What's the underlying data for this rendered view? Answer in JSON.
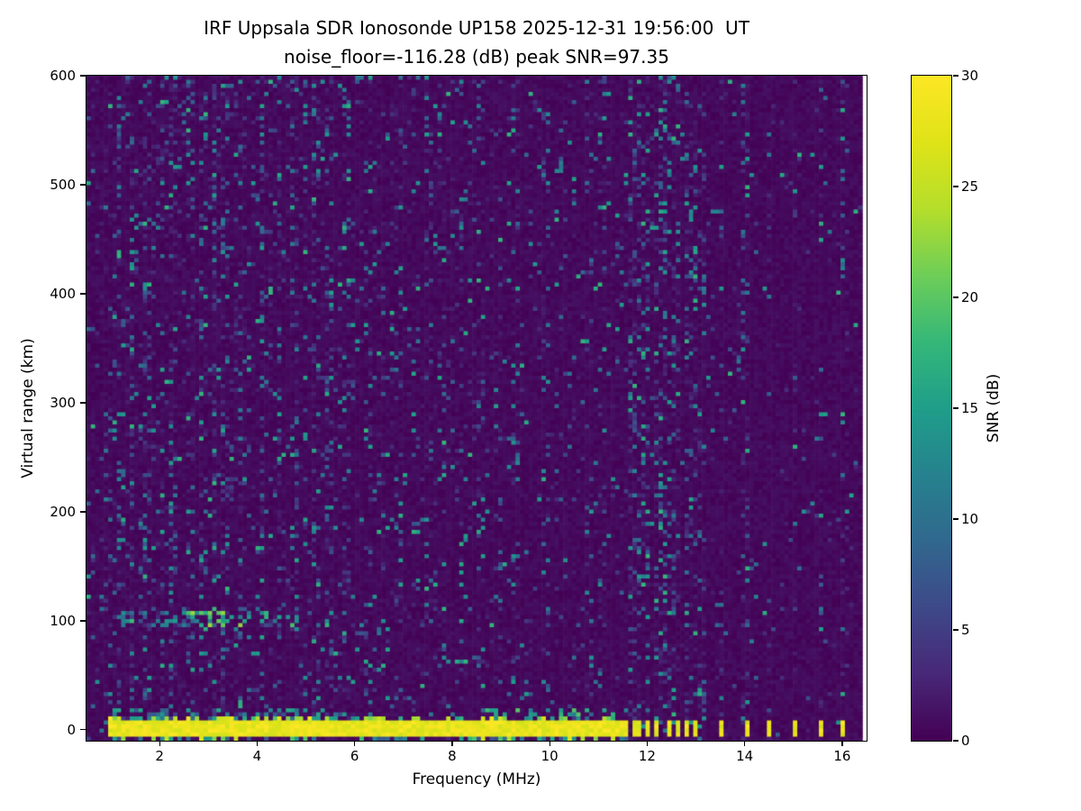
{
  "figure": {
    "title_line1": "IRF Uppsala SDR Ionosonde UP158 2025-12-31 19:56:00  UT",
    "title_line2": "noise_floor=-116.28 (dB) peak SNR=97.35",
    "xlabel": "Frequency (MHz)",
    "ylabel": "Virtual range (km)",
    "colorbar_label": "SNR (dB)"
  },
  "chart_data": {
    "type": "heatmap",
    "title": "IRF Uppsala SDR Ionosonde UP158 2025-12-31 19:56:00  UT",
    "subtitle": "noise_floor=-116.28 (dB) peak SNR=97.35",
    "station": "IRF Uppsala SDR Ionosonde UP158",
    "timestamp_ut": "2025-12-31 19:56:00 UT",
    "noise_floor_db": -116.28,
    "peak_snr_db": 97.35,
    "xlabel": "Frequency (MHz)",
    "ylabel": "Virtual range (km)",
    "xlim": [
      0.5,
      16.5
    ],
    "ylim": [
      -10,
      600
    ],
    "x_ticks": [
      2,
      4,
      6,
      8,
      10,
      12,
      14,
      16
    ],
    "y_ticks": [
      0,
      100,
      200,
      300,
      400,
      500,
      600
    ],
    "grid": false,
    "colorbar": {
      "label": "SNR (dB)",
      "min": 0,
      "max": 30,
      "ticks": [
        0,
        5,
        10,
        15,
        20,
        25,
        30
      ],
      "colormap": "viridis",
      "position": "right"
    },
    "background_color_hex": "#440154",
    "saturated_color_hex": "#fde725",
    "features": [
      "Saturated (>=30 dB) transmit/ground pulse band at ~0 km virtual range, continuous from ~1.0 to ~11.6 MHz",
      "From ~11.7 to ~13.2 MHz the 0 km pulse breaks into a comb of narrow vertical yellow bars spaced ~0.15 MHz",
      "Isolated 0 km yellow bars near 13.5, 14.0, 14.5, 15.0, 15.55 and 16.05 MHz",
      "Weak dashed E-region echo trace near 100 km virtual range between ~1.0 and ~4.3 MHz (SNR ~5-20 dB)",
      "Sparse teal speckle noise over dark ~0 dB background, denser at lower frequencies",
      "Many faint full-height vertical RFI stripes, densest between 11.7 and 13.2 MHz",
      "Thin scattered echo dashes just above the 0 km band (10-20 km) below ~6 MHz"
    ],
    "render": {
      "seed": 42,
      "nx": 180,
      "ny": 164,
      "data_x_max": 16.4,
      "base_noise_max": 1.3,
      "speckle": {
        "p_min": 0.02,
        "p_max": 0.1,
        "exp": 2.5,
        "v_min": 2,
        "v_span": 16
      },
      "stripes": [
        [
          1.15,
          0.22
        ],
        [
          1.45,
          0.28
        ],
        [
          1.75,
          0.18
        ],
        [
          2.05,
          0.22
        ],
        [
          2.3,
          0.18
        ],
        [
          2.62,
          0.18
        ],
        [
          2.9,
          0.12
        ],
        [
          3.1,
          0.26
        ],
        [
          3.35,
          0.22
        ],
        [
          3.6,
          0.14
        ],
        [
          3.85,
          0.1
        ],
        [
          4.1,
          0.18
        ],
        [
          4.45,
          0.26
        ],
        [
          4.75,
          0.14
        ],
        [
          5.0,
          0.1
        ],
        [
          5.2,
          0.22
        ],
        [
          5.5,
          0.18
        ],
        [
          5.85,
          0.14
        ],
        [
          6.3,
          0.1
        ],
        [
          6.6,
          0.08
        ],
        [
          6.9,
          0.1
        ],
        [
          7.2,
          0.08
        ],
        [
          7.5,
          0.09
        ],
        [
          7.8,
          0.07
        ],
        [
          8.2,
          0.16
        ],
        [
          8.6,
          0.09
        ],
        [
          9.0,
          0.07
        ],
        [
          9.3,
          0.1
        ],
        [
          9.6,
          0.07
        ],
        [
          9.9,
          0.08
        ],
        [
          10.2,
          0.06
        ],
        [
          10.5,
          0.08
        ],
        [
          10.8,
          0.06
        ],
        [
          11.1,
          0.1
        ],
        [
          11.4,
          0.08
        ],
        [
          11.72,
          0.22
        ],
        [
          11.87,
          0.22
        ],
        [
          12.02,
          0.22
        ],
        [
          12.17,
          0.22
        ],
        [
          12.32,
          0.22
        ],
        [
          12.49,
          0.22
        ],
        [
          12.64,
          0.22
        ],
        [
          12.79,
          0.22
        ],
        [
          12.96,
          0.22
        ],
        [
          13.12,
          0.22
        ],
        [
          13.52,
          0.16
        ],
        [
          14.02,
          0.16
        ],
        [
          14.52,
          0.12
        ],
        [
          15.02,
          0.1
        ],
        [
          15.55,
          0.1
        ],
        [
          16.05,
          0.1
        ]
      ],
      "ground_band": {
        "f_min": 0.95,
        "f_max": 11.62,
        "r_solid": [
          -6,
          8
        ],
        "fringe_top": [
          8,
          13
        ],
        "fringe_p": 0.5,
        "under_p": 0.45
      },
      "upper_fringe": {
        "f_min": 8.0,
        "f_max": 11.62,
        "r": [
          8,
          20
        ],
        "p": 0.25
      },
      "low_line": {
        "f_min": 1.0,
        "f_max": 6.0,
        "r": [
          10,
          18
        ],
        "p": 0.28
      },
      "top_line": {
        "f_min": 1.0,
        "f_max": 6.2,
        "r": [
          590,
          600
        ],
        "p": 0.15
      },
      "e_echo": {
        "f_min": 0.95,
        "f_max": 4.3,
        "r": [
          96,
          108
        ],
        "p": 0.42,
        "v_min": 5,
        "v_span": 14,
        "tail_f_max": 5.6,
        "tail_p": 0.12
      },
      "comb_bars": {
        "freqs": [
          11.72,
          11.87,
          12.02,
          12.17,
          12.32,
          12.49,
          12.64,
          12.79,
          12.96,
          13.12
        ],
        "half_width": 0.04,
        "r": [
          -6,
          7
        ]
      },
      "iso_bars": {
        "freqs": [
          13.52,
          14.02,
          14.52,
          15.02,
          15.55,
          16.05
        ],
        "half_width": 0.045,
        "r": [
          -5,
          7
        ]
      }
    }
  }
}
